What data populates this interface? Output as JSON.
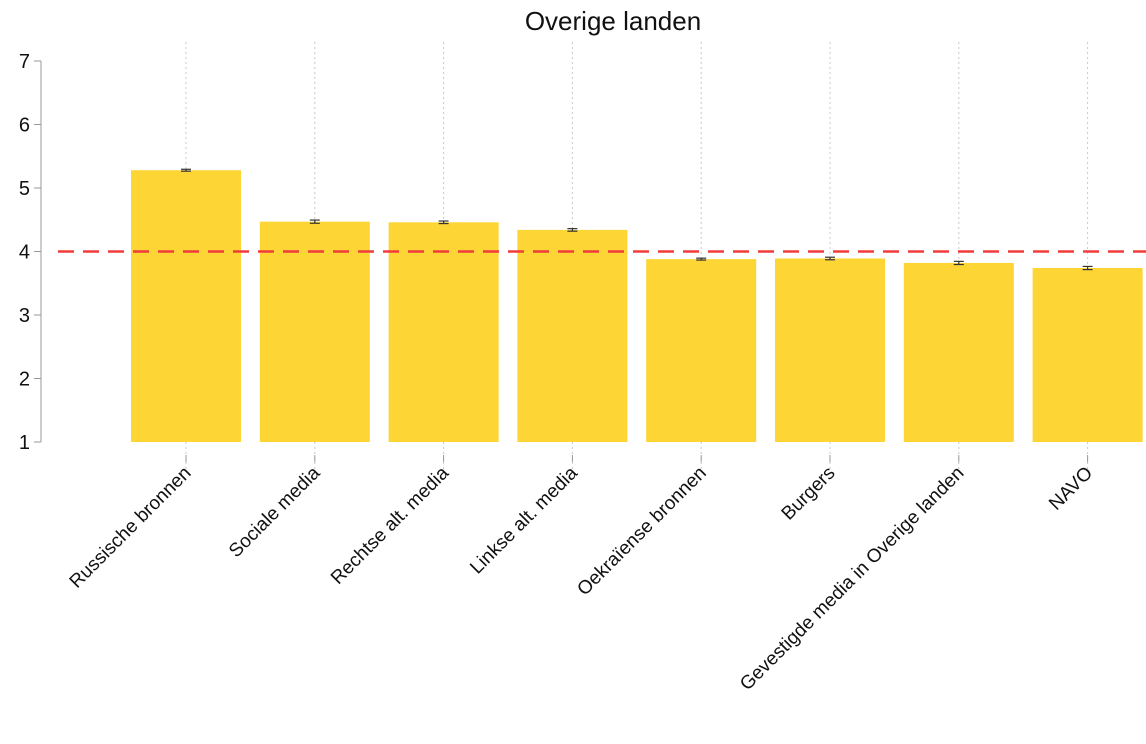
{
  "chart_data": {
    "type": "bar",
    "title": "Overige landen",
    "xlabel": "",
    "ylabel": "",
    "ylim": [
      1,
      7
    ],
    "yticks": [
      1,
      2,
      3,
      4,
      5,
      6,
      7
    ],
    "baseline": 1,
    "reference_line": {
      "y": 4,
      "style": "dashed",
      "color": "#f03c3c"
    },
    "categories": [
      "Russische bronnen",
      "Sociale media",
      "Rechtse alt. media",
      "Linkse alt. media",
      "Oekraïense bronnen",
      "Burgers",
      "Gevestigde media in Overige landen",
      "NAVO"
    ],
    "values": [
      5.28,
      4.47,
      4.46,
      4.34,
      3.88,
      3.89,
      3.82,
      3.74
    ],
    "error": [
      0.015,
      0.025,
      0.02,
      0.02,
      0.015,
      0.02,
      0.025,
      0.025
    ],
    "bar_color": "#fdd535",
    "grid": "vertical dotted at categories",
    "legend": "none"
  }
}
